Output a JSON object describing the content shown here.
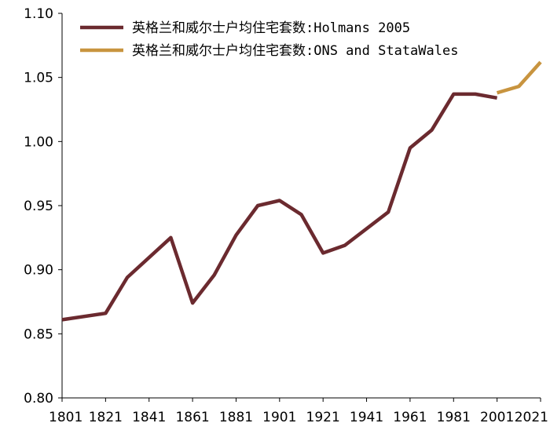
{
  "chart_data": {
    "type": "line",
    "title": "",
    "xlabel": "",
    "ylabel": "",
    "xlim": [
      1801,
      2021
    ],
    "ylim": [
      0.8,
      1.1
    ],
    "x_ticks": [
      "1801",
      "1821",
      "1841",
      "1861",
      "1881",
      "1901",
      "1921",
      "1941",
      "1961",
      "1981",
      "2001",
      "2021"
    ],
    "y_ticks": [
      "0.80",
      "0.85",
      "0.90",
      "0.95",
      "1.00",
      "1.05",
      "1.10"
    ],
    "grid": false,
    "legend_position": "top",
    "series": [
      {
        "name": "英格兰和威尔士户均住宅套数:Holmans 2005",
        "color": "#6b2a2f",
        "x": [
          1801,
          1821,
          1831,
          1851,
          1861,
          1871,
          1881,
          1891,
          1901,
          1911,
          1921,
          1931,
          1951,
          1961,
          1971,
          1981,
          1991,
          2001
        ],
        "y": [
          0.861,
          0.866,
          0.894,
          0.925,
          0.874,
          0.896,
          0.927,
          0.95,
          0.954,
          0.943,
          0.913,
          0.919,
          0.945,
          0.995,
          1.009,
          1.037,
          1.037,
          1.034
        ]
      },
      {
        "name": "英格兰和威尔士户均住宅套数:ONS and StataWales",
        "color": "#c8943f",
        "x": [
          2001,
          2011,
          2021
        ],
        "y": [
          1.038,
          1.043,
          1.062
        ]
      }
    ]
  }
}
